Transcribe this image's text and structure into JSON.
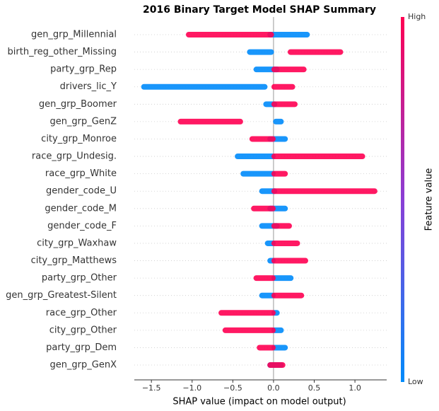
{
  "chart_data": {
    "type": "beeswarm",
    "title": "2016 Binary Target Model SHAP Summary",
    "x_label": "SHAP value (impact on model output)",
    "colorbar_label": "Feature value",
    "categories": [
      "gen_grp_Millennial",
      "birth_reg_other_Missing",
      "party_grp_Rep",
      "drivers_lic_Y",
      "gen_grp_Boomer",
      "gen_grp_GenZ",
      "city_grp_Monroe",
      "race_grp_Undesig.",
      "race_grp_White",
      "gender_code_U",
      "gender_code_M",
      "gender_code_F",
      "city_grp_Waxhaw",
      "city_grp_Matthews",
      "party_grp_Other",
      "gen_grp_Greatest-Silent",
      "race_grp_Other",
      "city_grp_Other",
      "party_grp_Dem",
      "gen_grp_GenX"
    ],
    "series": [
      {
        "name": "Low",
        "color": "#008bfb",
        "values": [
          [
            -0.05,
            0.42
          ],
          [
            -0.3,
            -0.02
          ],
          [
            -0.22,
            0.05
          ],
          [
            -1.6,
            -0.1
          ],
          [
            -0.1,
            0.02
          ],
          [
            0.02,
            0.1
          ],
          [
            -0.05,
            0.15
          ],
          [
            -0.45,
            0.0
          ],
          [
            -0.38,
            0.0
          ],
          [
            -0.15,
            0.02
          ],
          [
            -0.05,
            0.15
          ],
          [
            -0.15,
            0.05
          ],
          [
            -0.08,
            0.0
          ],
          [
            -0.05,
            0.0
          ],
          [
            0.0,
            0.22
          ],
          [
            -0.15,
            0.0
          ],
          [
            0.0,
            0.05
          ],
          [
            0.0,
            0.1
          ],
          [
            0.0,
            0.15
          ],
          [
            -0.05,
            0.1
          ]
        ]
      },
      {
        "name": "High",
        "color": "#ff0052",
        "values": [
          [
            -1.05,
            -0.02
          ],
          [
            0.2,
            0.83
          ],
          [
            0.0,
            0.38
          ],
          [
            0.0,
            0.24
          ],
          [
            0.0,
            0.27
          ],
          [
            -1.15,
            -0.4
          ],
          [
            -0.27,
            0.0
          ],
          [
            0.0,
            1.1
          ],
          [
            0.0,
            0.15
          ],
          [
            0.0,
            1.25
          ],
          [
            -0.25,
            0.0
          ],
          [
            0.0,
            0.2
          ],
          [
            0.0,
            0.3
          ],
          [
            0.0,
            0.4
          ],
          [
            -0.22,
            0.0
          ],
          [
            0.0,
            0.35
          ],
          [
            -0.65,
            0.0
          ],
          [
            -0.6,
            0.0
          ],
          [
            -0.18,
            0.0
          ],
          [
            -0.05,
            0.12
          ]
        ]
      }
    ],
    "xlim": [
      -1.71,
      1.39
    ],
    "xticks": [
      {
        "value": -1.5,
        "label": "−1.5"
      },
      {
        "value": -1.0,
        "label": "−1.0"
      },
      {
        "value": -0.5,
        "label": "−0.5"
      },
      {
        "value": 0.0,
        "label": "0.0"
      },
      {
        "value": 0.5,
        "label": "0.5"
      },
      {
        "value": 1.0,
        "label": "1.0"
      }
    ]
  }
}
